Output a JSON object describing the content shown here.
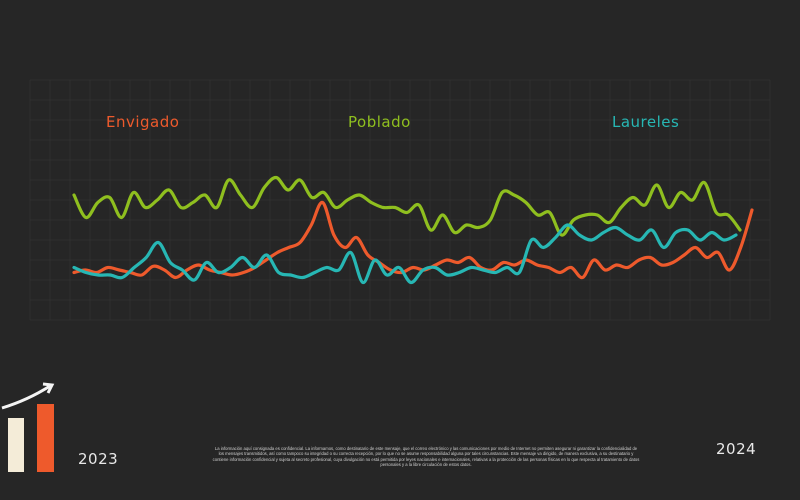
{
  "chart_data": {
    "type": "line",
    "x_start": "2023",
    "x_end": "2024",
    "grid": true,
    "legend": "top",
    "series": [
      {
        "name": "Envigado",
        "color": "#ee5a2c",
        "values": [
          0.1,
          0.12,
          0.1,
          0.14,
          0.12,
          0.1,
          0.08,
          0.15,
          0.12,
          0.06,
          0.12,
          0.16,
          0.12,
          0.1,
          0.08,
          0.1,
          0.14,
          0.2,
          0.26,
          0.3,
          0.34,
          0.48,
          0.66,
          0.4,
          0.3,
          0.38,
          0.24,
          0.18,
          0.12,
          0.1,
          0.14,
          0.12,
          0.16,
          0.2,
          0.18,
          0.22,
          0.14,
          0.12,
          0.18,
          0.16,
          0.2,
          0.16,
          0.14,
          0.1,
          0.14,
          0.06,
          0.2,
          0.12,
          0.16,
          0.14,
          0.2,
          0.22,
          0.16,
          0.18,
          0.24,
          0.3,
          0.22,
          0.26,
          0.12,
          0.3,
          0.6
        ]
      },
      {
        "name": "Poblado",
        "color": "#8fbf1f",
        "values": [
          0.72,
          0.54,
          0.66,
          0.7,
          0.54,
          0.74,
          0.62,
          0.68,
          0.76,
          0.62,
          0.66,
          0.72,
          0.62,
          0.84,
          0.72,
          0.62,
          0.78,
          0.86,
          0.76,
          0.84,
          0.7,
          0.74,
          0.62,
          0.68,
          0.72,
          0.66,
          0.62,
          0.62,
          0.58,
          0.64,
          0.44,
          0.56,
          0.42,
          0.48,
          0.46,
          0.52,
          0.74,
          0.72,
          0.66,
          0.56,
          0.58,
          0.4,
          0.52,
          0.56,
          0.56,
          0.5,
          0.62,
          0.7,
          0.64,
          0.8,
          0.62,
          0.74,
          0.68,
          0.82,
          0.58,
          0.56,
          0.44
        ]
      },
      {
        "name": "Laureles",
        "color": "#27b7b4",
        "values": [
          0.14,
          0.1,
          0.08,
          0.08,
          0.06,
          0.14,
          0.22,
          0.34,
          0.18,
          0.12,
          0.04,
          0.18,
          0.1,
          0.14,
          0.22,
          0.14,
          0.24,
          0.1,
          0.08,
          0.06,
          0.1,
          0.14,
          0.12,
          0.26,
          0.02,
          0.2,
          0.08,
          0.14,
          0.02,
          0.12,
          0.14,
          0.08,
          0.1,
          0.14,
          0.12,
          0.1,
          0.14,
          0.1,
          0.36,
          0.3,
          0.38,
          0.48,
          0.4,
          0.36,
          0.42,
          0.46,
          0.4,
          0.36,
          0.44,
          0.3,
          0.42,
          0.44,
          0.36,
          0.42,
          0.36,
          0.4
        ]
      }
    ]
  },
  "labels": {
    "year_start": "2023",
    "year_end": "2024",
    "disclaimer": "La información aquí consignada es confidencial. La informamos, como destinatario de este mensaje, que el correo electrónico y las comunicaciones por medio de Internet no permiten asegurar ni garantizar la confidencialidad de los mensajes transmitidos, así como tampoco su integridad o su correcta recepción, por lo que no se asume responsabilidad alguna por tales circunstancias. Este mensaje va dirigido, de manera exclusiva, a su destinatario y contiene información confidencial y sujeta al secreto profesional, cuya divulgación no está permitida por leyes nacionales e internacionales, relativas a la protección de las personas físicas en lo que respecta al tratamiento de datos personales y a la libre circulación de estos datos."
  },
  "colors": {
    "background": "#262626",
    "grid": "#363636",
    "logo_bar_light": "#f4ecd8",
    "logo_bar_accent": "#ee5a2c",
    "logo_arrow": "#f4f4f4"
  },
  "icons": {
    "logo": "bar-chart-growth-icon"
  }
}
